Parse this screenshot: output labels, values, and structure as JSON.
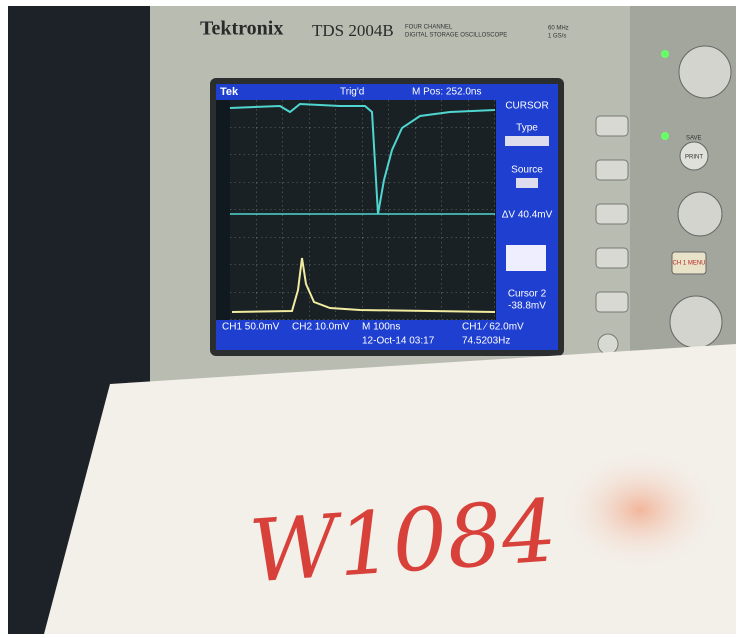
{
  "brand": {
    "logo": "Tektronix",
    "model": "TDS 2004B",
    "description": [
      "FOUR CHANNEL",
      "DIGITAL STORAGE OSCILLOSCOPE"
    ],
    "spec": [
      "60 MHz",
      "1 GS/s"
    ]
  },
  "screen": {
    "status": {
      "logo": "Tek",
      "trigger": "Trig'd",
      "position": "M Pos: 252.0ns"
    },
    "menu": {
      "title": "CURSOR",
      "items": [
        "Type",
        "Source",
        "ΔV 40.4mV",
        "Cursor 2",
        "-38.8mV"
      ]
    },
    "footer": [
      "CH1 50.0mV",
      "CH2 10.0mV",
      "M 100ns",
      "CH1 ∕ 62.0mV",
      "12-Oct-14 03:17",
      "74.5203Hz"
    ]
  },
  "buttons": [
    "SAVE",
    "PRINT",
    "CH 1 MENU"
  ],
  "note": "W1084"
}
